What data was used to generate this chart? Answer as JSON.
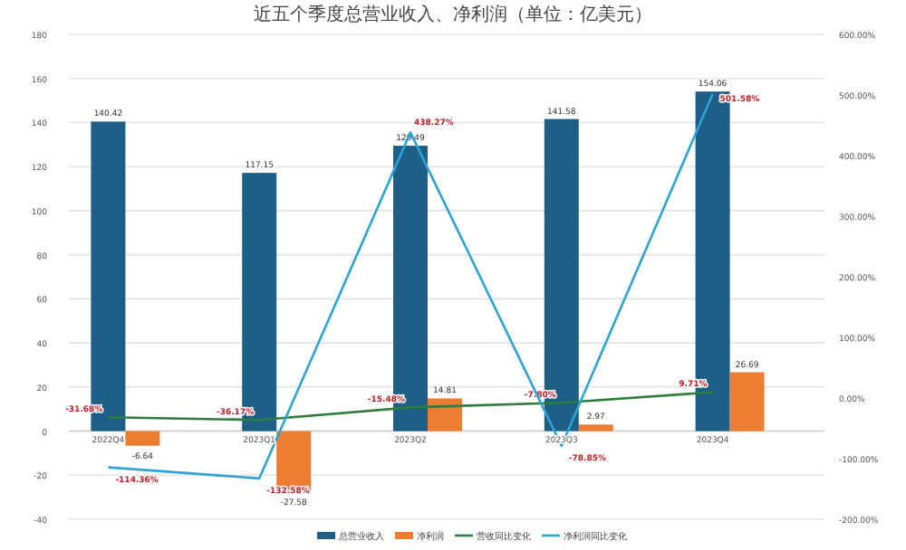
{
  "chart_data": {
    "type": "bar",
    "title": "近五个季度总营业收入、净利润（单位：亿美元）",
    "categories": [
      "2022Q4",
      "2023Q1",
      "2023Q2",
      "2023Q3",
      "2023Q4"
    ],
    "series": [
      {
        "name": "总营业收入",
        "color": "#1d5f86",
        "values": [
          140.42,
          117.15,
          129.49,
          141.58,
          154.06
        ],
        "value_labels": [
          "140.42",
          "117.15",
          "129.49",
          "141.58",
          "154.06"
        ]
      },
      {
        "name": "净利润",
        "color": "#ed7d31",
        "values": [
          -6.64,
          -27.58,
          14.81,
          2.97,
          26.69
        ],
        "value_labels": [
          "-6.64",
          "-27.58",
          "14.81",
          "2.97",
          "26.69"
        ]
      },
      {
        "name": "营收同比变化",
        "type": "line",
        "axis": "y2",
        "color": "#2e7d3c",
        "values": [
          -31.68,
          -36.17,
          -15.48,
          -7.8,
          9.71
        ],
        "value_labels": [
          "-31.68%",
          "-36.17%",
          "-15.48%",
          "-7.80%",
          "9.71%"
        ]
      },
      {
        "name": "净利润同比变化",
        "type": "line",
        "axis": "y2",
        "color": "#2ea3d5",
        "values": [
          -114.36,
          -132.58,
          438.27,
          -78.85,
          501.58
        ],
        "value_labels": [
          "-114.36%",
          "-132.58%",
          "438.27%",
          "-78.85%",
          "501.58%"
        ]
      }
    ],
    "ylim": [
      -40,
      180
    ],
    "yticks": [
      -40,
      -20,
      0,
      20,
      40,
      60,
      80,
      100,
      120,
      140,
      160,
      180
    ],
    "y2lim": [
      -200,
      600
    ],
    "y2ticks": [
      {
        "value": -200,
        "label": "-200.00%"
      },
      {
        "value": -100,
        "label": "-100.00%"
      },
      {
        "value": 0,
        "label": "0.00%"
      },
      {
        "value": 100,
        "label": "100.00%"
      },
      {
        "value": 200,
        "label": "200.00%"
      },
      {
        "value": 300,
        "label": "300.00%"
      },
      {
        "value": 400,
        "label": "400.00%"
      },
      {
        "value": 500,
        "label": "500.00%"
      },
      {
        "value": 600,
        "label": "600.00%"
      }
    ],
    "grid": "y",
    "legend": "bottom"
  }
}
